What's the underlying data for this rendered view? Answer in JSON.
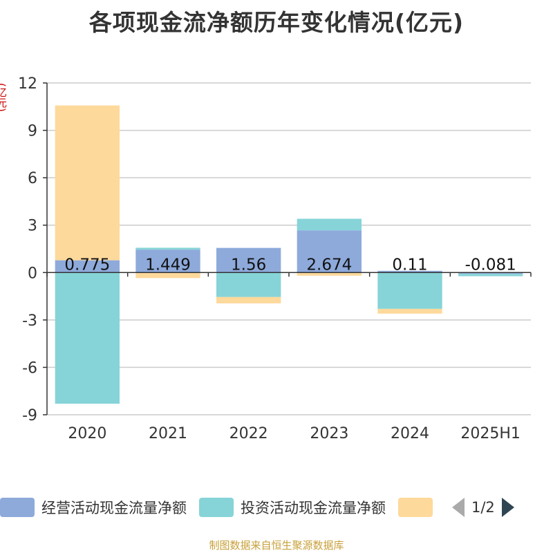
{
  "chart_data": {
    "type": "bar",
    "stacked": true,
    "title": "各项现金流净额历年变化情况(亿元)",
    "ylabel": "(亿元)",
    "categories": [
      "2020",
      "2021",
      "2022",
      "2023",
      "2024",
      "2025H1"
    ],
    "ylim": [
      -9,
      12
    ],
    "yticks": [
      12,
      9,
      6,
      3,
      0,
      -3,
      -6,
      -9
    ],
    "grid": true,
    "legend_position": "bottom",
    "series": [
      {
        "name": "经营活动现金流量净额",
        "color": "#8eaadb",
        "values": [
          0.775,
          1.449,
          1.56,
          2.674,
          0.11,
          -0.081
        ],
        "data_labels": [
          "0.775",
          "1.449",
          "1.56",
          "2.674",
          "0.11",
          "-0.081"
        ]
      },
      {
        "name": "投资活动现金流量净额",
        "color": "#86d4d8",
        "values": [
          -8.3,
          0.12,
          -1.55,
          0.73,
          -2.3,
          -0.15
        ]
      },
      {
        "name": "",
        "color": "#fdd99b",
        "values": [
          9.8,
          -0.35,
          -0.4,
          -0.2,
          -0.3,
          0.0
        ]
      }
    ]
  },
  "legend": {
    "page_indicator": "1/2",
    "prev_icon": "triangle-left",
    "next_icon": "triangle-right"
  },
  "source_text": "制图数据来自恒生聚源数据库"
}
